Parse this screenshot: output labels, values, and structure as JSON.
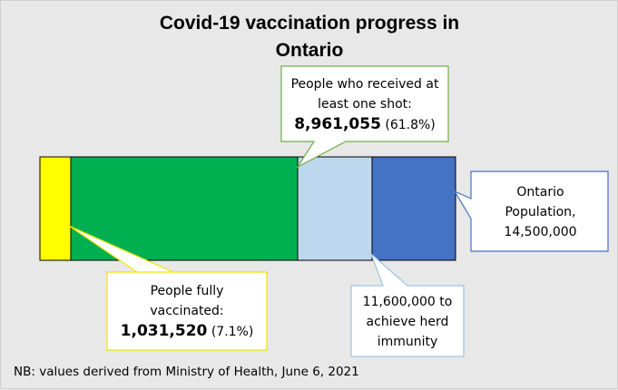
{
  "chart_data": {
    "type": "bar",
    "title_line1": "Covid-19 vaccination progress in",
    "title_line2": "Ontario",
    "population": 14500000,
    "herd_immunity": 11600000,
    "one_shot": 8961055,
    "fully_vaccinated": 1031520,
    "segments": [
      {
        "name": "fully-vaccinated",
        "value": 1031520,
        "color": "#ffff00"
      },
      {
        "name": "one-shot",
        "value": 8961055,
        "color": "#00b050"
      },
      {
        "name": "herd-immunity",
        "value": 11600000,
        "color": "#bdd7ee"
      },
      {
        "name": "population",
        "value": 14500000,
        "color": "#4472c4"
      }
    ]
  },
  "callouts": {
    "one_shot": {
      "line1": "People who received at",
      "line2": "least one shot:",
      "value": "8,961,055",
      "pct": "(61.8%)"
    },
    "population": {
      "line1": "Ontario",
      "line2": "Population,",
      "line3": "14,500,000"
    },
    "fully": {
      "line1": "People fully",
      "line2": "vaccinated:",
      "value": "1,031,520",
      "pct": "(7.1%)"
    },
    "herd": {
      "line1": "11,600,000 to",
      "line2": "achieve herd",
      "line3": "immunity"
    }
  },
  "footnote": "NB: values derived from Ministry of Health, June 6, 2021"
}
